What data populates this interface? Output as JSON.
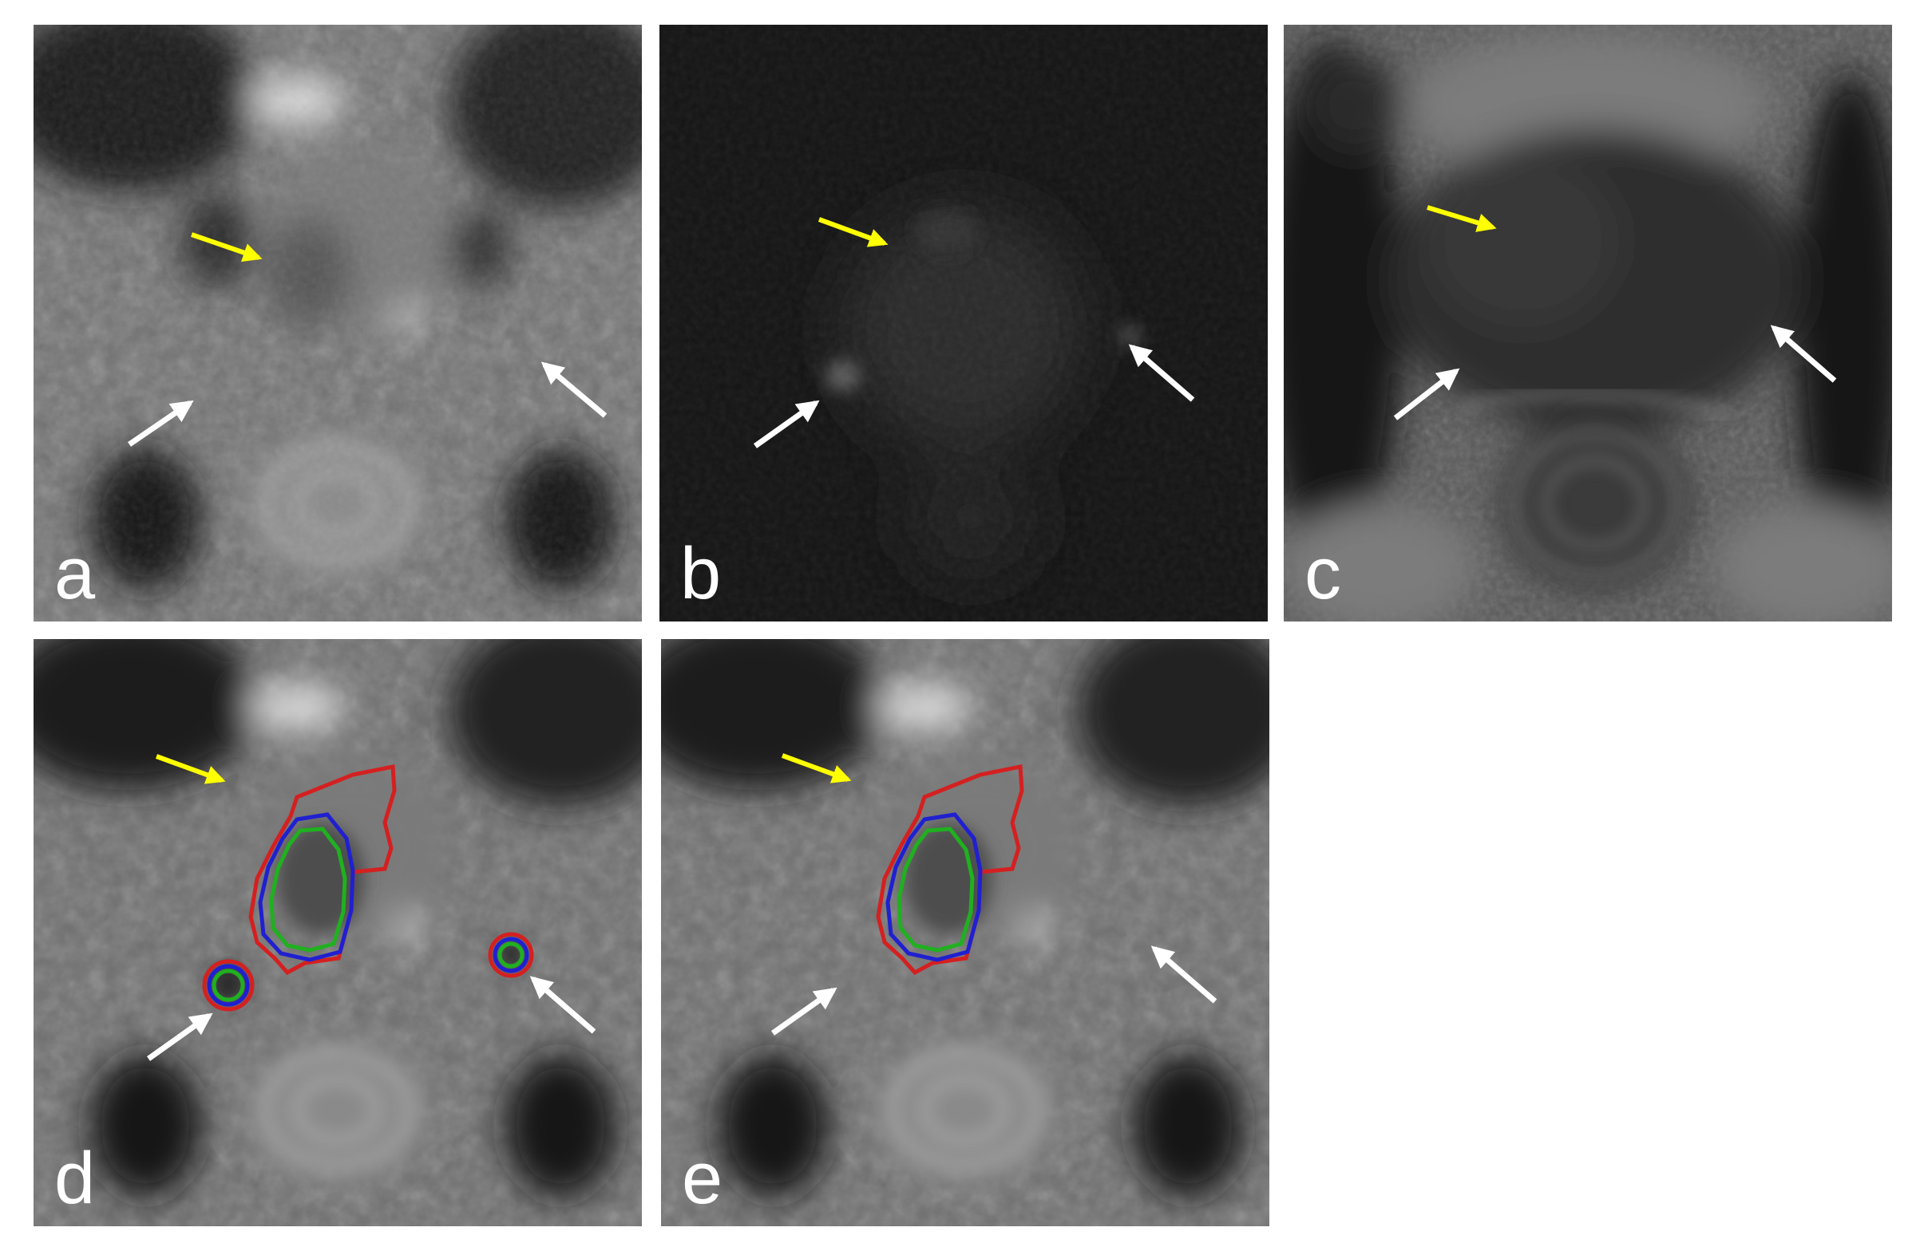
{
  "figure": {
    "panels": [
      {
        "label": "a",
        "modality": "adc-map"
      },
      {
        "label": "b",
        "modality": "diffusion-weighted-image"
      },
      {
        "label": "c",
        "modality": "t2-weighted-image"
      },
      {
        "label": "d",
        "modality": "adc-map-with-segmentation-contours"
      },
      {
        "label": "e",
        "modality": "adc-map-with-segmentation-contours"
      }
    ],
    "colors": {
      "yellow_arrow": "#ffff00",
      "white_arrow": "#ffffff",
      "contour_red": "#d42020",
      "contour_blue": "#2020d0",
      "contour_green": "#20b020"
    }
  }
}
